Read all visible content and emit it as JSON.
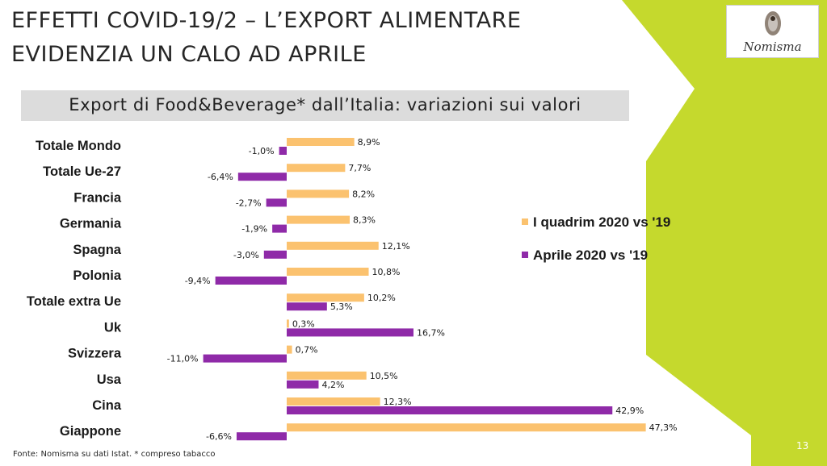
{
  "title": {
    "line1": "EFFETTI COVID-19/2 – L’EXPORT ALIMENTARE",
    "line2": "EVIDENZIA UN CALO AD APRILE"
  },
  "subtitle": "Export di Food&Beverage* dall’Italia: variazioni sui valori",
  "logo": {
    "text": "Nomisma"
  },
  "footnote": "Fonte: Nomisma su dati Istat. * compreso tabacco",
  "page_number": "13",
  "colors": {
    "accent_green": "#c5d92d",
    "series_quarter": "#fbc26f",
    "series_april": "#8f2aa8",
    "subtitle_bg": "#dcdcdc"
  },
  "chart_data": {
    "type": "bar",
    "orientation": "horizontal",
    "categories": [
      "Totale Mondo",
      "Totale Ue-27",
      "Francia",
      "Germania",
      "Spagna",
      "Polonia",
      "Totale extra Ue",
      "Uk",
      "Svizzera",
      "Usa",
      "Cina",
      "Giappone"
    ],
    "series": [
      {
        "name": "I quadrim 2020 vs '19",
        "color": "#fbc26f",
        "values": [
          8.9,
          7.7,
          8.2,
          8.3,
          12.1,
          10.8,
          10.2,
          0.3,
          0.7,
          10.5,
          12.3,
          47.3
        ],
        "labels": [
          "8,9%",
          "7,7%",
          "8,2%",
          "8,3%",
          "12,1%",
          "10,8%",
          "10,2%",
          "0,3%",
          "0,7%",
          "10,5%",
          "12,3%",
          "47,3%"
        ]
      },
      {
        "name": "Aprile 2020 vs '19",
        "color": "#8f2aa8",
        "values": [
          -1.0,
          -6.4,
          -2.7,
          -1.9,
          -3.0,
          -9.4,
          5.3,
          16.7,
          -11.0,
          4.2,
          42.9,
          -6.6
        ],
        "labels": [
          "-1,0%",
          "-6,4%",
          "-2,7%",
          "-1,9%",
          "-3,0%",
          "-9,4%",
          "5,3%",
          "16,7%",
          "-11,0%",
          "4,2%",
          "42,9%",
          "-6,6%"
        ]
      }
    ],
    "legend": {
      "position": "right"
    }
  }
}
